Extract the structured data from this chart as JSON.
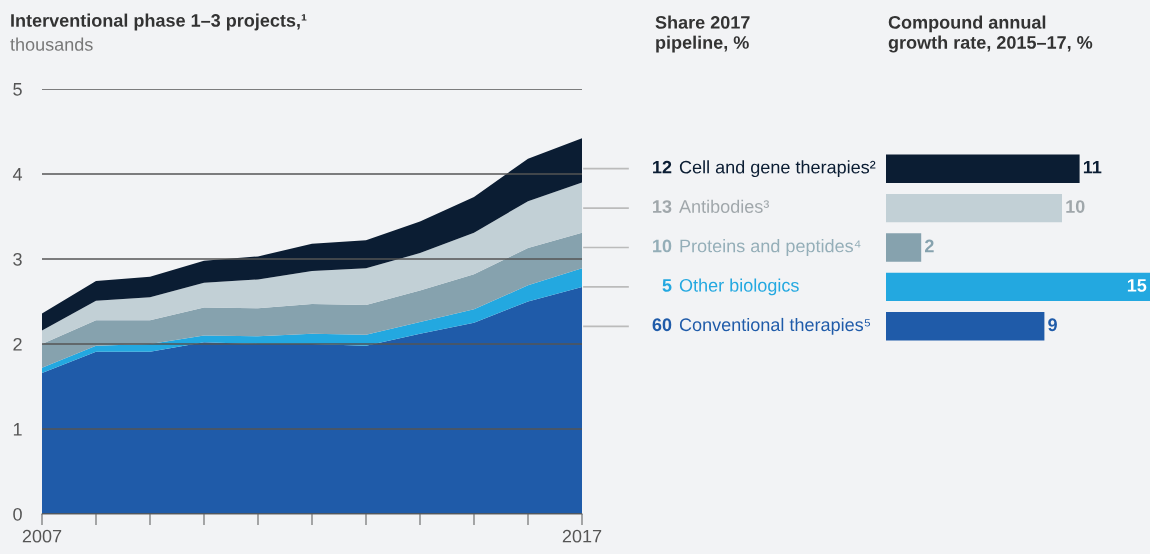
{
  "chart_data": [
    {
      "type": "area",
      "stacked": true,
      "title": "Interventional phase 1–3 projects,¹",
      "subtitle": "thousands",
      "x": [
        2007,
        2008,
        2009,
        2010,
        2011,
        2012,
        2013,
        2014,
        2015,
        2016,
        2017
      ],
      "series": [
        {
          "color": "#1f5ba9",
          "values": [
            1.66,
            1.91,
            1.91,
            2.02,
            2.0,
            2.0,
            1.98,
            2.12,
            2.25,
            2.5,
            2.67
          ]
        },
        {
          "color": "#23a8e0",
          "values": [
            0.06,
            0.07,
            0.09,
            0.08,
            0.09,
            0.12,
            0.13,
            0.14,
            0.16,
            0.19,
            0.22
          ]
        },
        {
          "color": "#86a2ae",
          "values": [
            0.28,
            0.3,
            0.28,
            0.33,
            0.33,
            0.35,
            0.35,
            0.37,
            0.41,
            0.44,
            0.42
          ]
        },
        {
          "color": "#c2d0d6",
          "values": [
            0.16,
            0.23,
            0.27,
            0.29,
            0.34,
            0.39,
            0.43,
            0.44,
            0.49,
            0.55,
            0.59
          ]
        },
        {
          "color": "#0b1d33",
          "values": [
            0.2,
            0.23,
            0.24,
            0.26,
            0.27,
            0.32,
            0.33,
            0.37,
            0.42,
            0.5,
            0.52
          ]
        }
      ],
      "xlim": [
        2007,
        2017
      ],
      "xticks": [
        2007,
        {
          "value": 2008,
          "label": null
        },
        {
          "value": 2009,
          "label": null
        },
        {
          "value": 2010,
          "label": null
        },
        {
          "value": 2011,
          "label": null
        },
        {
          "value": 2012,
          "label": null
        },
        {
          "value": 2013,
          "label": null
        },
        {
          "value": 2014,
          "label": null
        },
        {
          "value": 2015,
          "label": null
        },
        {
          "value": 2016,
          "label": null
        },
        2017
      ],
      "ylim": [
        0,
        5
      ],
      "yticks": [
        0,
        1,
        2,
        3,
        4,
        5
      ],
      "grid": "y",
      "legend": false
    },
    {
      "type": "other",
      "title": "Share 2017\npipeline, %",
      "categories": [
        "Cell and gene therapies²",
        "Antibodies³",
        "Proteins and peptides⁴",
        "Other biologics",
        "Conventional therapies⁵"
      ],
      "values": [
        12,
        13,
        10,
        5,
        60
      ],
      "data_labels": true,
      "colors": [
        "#0b1d33",
        "#a0a7ab",
        "#94aeb8",
        "#23a8e0",
        "#1f5ba9"
      ]
    },
    {
      "type": "bar",
      "orientation": "horizontal",
      "title": "Compound annual\ngrowth rate, 2015–17, %",
      "relative": false,
      "categories": [
        null,
        null,
        null,
        null,
        null
      ],
      "values": [
        11,
        10,
        2,
        15,
        9
      ],
      "colors": [
        "#0b1d33",
        "#c2d0d6",
        "#86a2ae",
        "#23a8e0",
        "#1f5ba9"
      ],
      "xlim": [
        0,
        15
      ],
      "data_labels": true,
      "tick_labels": false
    }
  ]
}
